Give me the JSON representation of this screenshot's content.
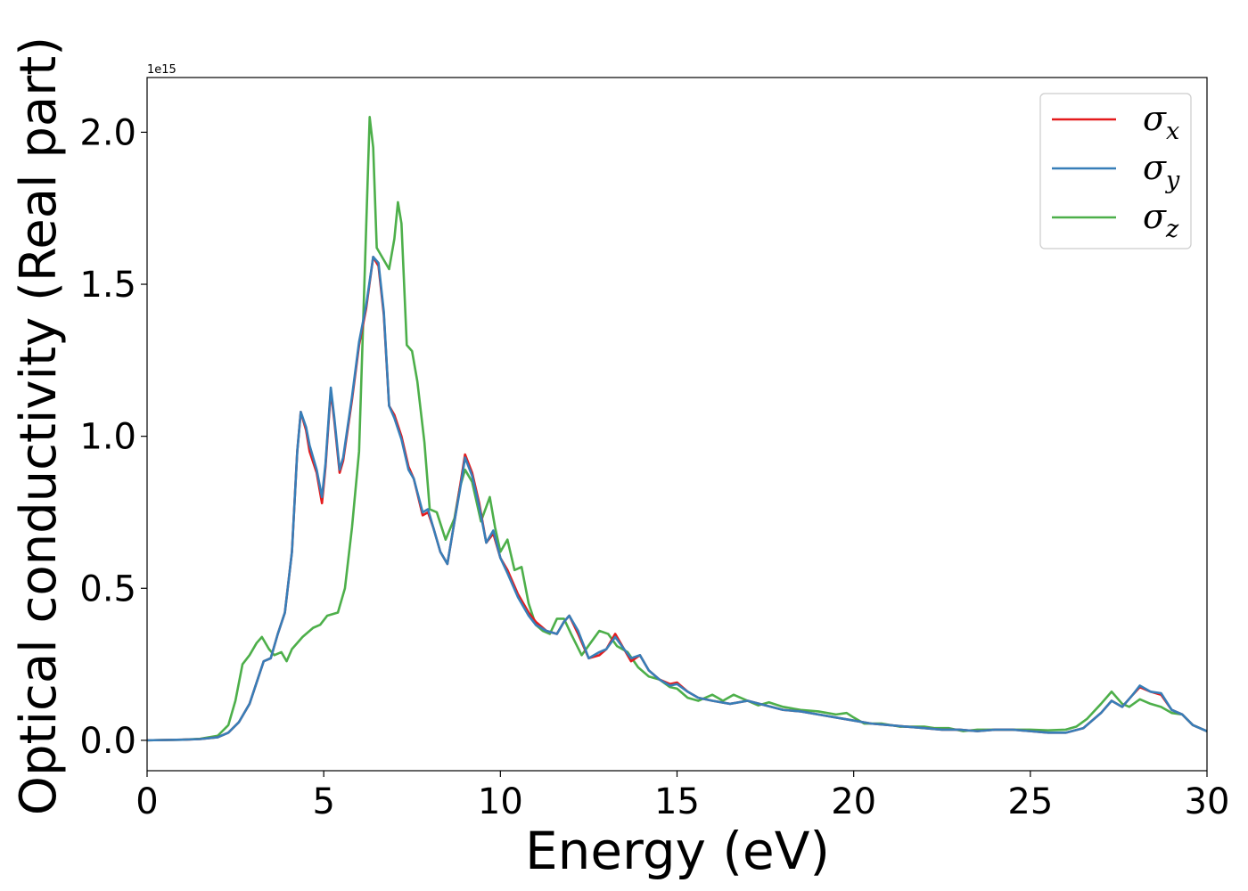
{
  "chart_data": {
    "type": "line",
    "title": "",
    "xlabel": "Energy (eV)",
    "ylabel": "Optical conductivity (Real part)",
    "y_offset_label": "1e15",
    "y_multiplier": 1000000000000000.0,
    "xlim": [
      0,
      30
    ],
    "ylim": [
      -0.1,
      2.18
    ],
    "x_ticks": [
      0,
      5,
      10,
      15,
      20,
      25,
      30
    ],
    "x_tick_labels": [
      "0",
      "5",
      "10",
      "15",
      "20",
      "25",
      "30"
    ],
    "y_ticks": [
      0.0,
      0.5,
      1.0,
      1.5,
      2.0
    ],
    "y_tick_labels": [
      "0.0",
      "0.5",
      "1.0",
      "1.5",
      "2.0"
    ],
    "grid": false,
    "legend_position": "top-right",
    "series": [
      {
        "name": "σx",
        "symbol": "σ",
        "subscript": "x",
        "color": "#e41a1c",
        "points": [
          [
            0,
            0
          ],
          [
            1,
            0.002
          ],
          [
            1.5,
            0.004
          ],
          [
            2,
            0.01
          ],
          [
            2.3,
            0.025
          ],
          [
            2.6,
            0.06
          ],
          [
            2.9,
            0.12
          ],
          [
            3.1,
            0.19
          ],
          [
            3.3,
            0.26
          ],
          [
            3.5,
            0.27
          ],
          [
            3.7,
            0.35
          ],
          [
            3.9,
            0.42
          ],
          [
            4.1,
            0.62
          ],
          [
            4.25,
            0.95
          ],
          [
            4.35,
            1.08
          ],
          [
            4.5,
            1.02
          ],
          [
            4.6,
            0.95
          ],
          [
            4.8,
            0.88
          ],
          [
            4.95,
            0.78
          ],
          [
            5.05,
            0.9
          ],
          [
            5.2,
            1.15
          ],
          [
            5.3,
            1.05
          ],
          [
            5.45,
            0.88
          ],
          [
            5.55,
            0.92
          ],
          [
            5.8,
            1.12
          ],
          [
            6.0,
            1.3
          ],
          [
            6.2,
            1.42
          ],
          [
            6.4,
            1.59
          ],
          [
            6.55,
            1.56
          ],
          [
            6.7,
            1.4
          ],
          [
            6.85,
            1.1
          ],
          [
            7.0,
            1.07
          ],
          [
            7.2,
            1.0
          ],
          [
            7.4,
            0.9
          ],
          [
            7.55,
            0.86
          ],
          [
            7.8,
            0.74
          ],
          [
            7.95,
            0.75
          ],
          [
            8.1,
            0.7
          ],
          [
            8.3,
            0.62
          ],
          [
            8.5,
            0.58
          ],
          [
            8.7,
            0.72
          ],
          [
            8.85,
            0.83
          ],
          [
            9.0,
            0.94
          ],
          [
            9.2,
            0.88
          ],
          [
            9.4,
            0.78
          ],
          [
            9.6,
            0.65
          ],
          [
            9.8,
            0.68
          ],
          [
            10.0,
            0.6
          ],
          [
            10.2,
            0.56
          ],
          [
            10.5,
            0.48
          ],
          [
            10.8,
            0.42
          ],
          [
            11.0,
            0.39
          ],
          [
            11.3,
            0.36
          ],
          [
            11.6,
            0.35
          ],
          [
            11.8,
            0.39
          ],
          [
            11.95,
            0.41
          ],
          [
            12.2,
            0.35
          ],
          [
            12.5,
            0.27
          ],
          [
            12.8,
            0.28
          ],
          [
            13.0,
            0.3
          ],
          [
            13.25,
            0.35
          ],
          [
            13.5,
            0.3
          ],
          [
            13.7,
            0.26
          ],
          [
            13.95,
            0.28
          ],
          [
            14.2,
            0.23
          ],
          [
            14.5,
            0.2
          ],
          [
            14.8,
            0.185
          ],
          [
            15.0,
            0.19
          ],
          [
            15.3,
            0.16
          ],
          [
            15.6,
            0.14
          ],
          [
            16.0,
            0.13
          ],
          [
            16.5,
            0.12
          ],
          [
            17.0,
            0.13
          ],
          [
            17.5,
            0.115
          ],
          [
            18.0,
            0.1
          ],
          [
            18.5,
            0.095
          ],
          [
            19.0,
            0.085
          ],
          [
            19.5,
            0.075
          ],
          [
            20.0,
            0.065
          ],
          [
            20.5,
            0.055
          ],
          [
            21.0,
            0.05
          ],
          [
            21.5,
            0.045
          ],
          [
            22.0,
            0.04
          ],
          [
            22.5,
            0.035
          ],
          [
            23.0,
            0.035
          ],
          [
            23.5,
            0.03
          ],
          [
            24.0,
            0.035
          ],
          [
            24.5,
            0.035
          ],
          [
            25.0,
            0.03
          ],
          [
            25.5,
            0.025
          ],
          [
            26.0,
            0.025
          ],
          [
            26.5,
            0.04
          ],
          [
            27.0,
            0.09
          ],
          [
            27.3,
            0.13
          ],
          [
            27.6,
            0.11
          ],
          [
            27.9,
            0.15
          ],
          [
            28.1,
            0.175
          ],
          [
            28.4,
            0.16
          ],
          [
            28.7,
            0.15
          ],
          [
            29.0,
            0.1
          ],
          [
            29.3,
            0.085
          ],
          [
            29.6,
            0.05
          ],
          [
            30.0,
            0.03
          ]
        ]
      },
      {
        "name": "σy",
        "symbol": "σ",
        "subscript": "y",
        "color": "#377eb8",
        "points": [
          [
            0,
            0
          ],
          [
            1,
            0.002
          ],
          [
            1.5,
            0.004
          ],
          [
            2,
            0.01
          ],
          [
            2.3,
            0.025
          ],
          [
            2.6,
            0.06
          ],
          [
            2.9,
            0.12
          ],
          [
            3.1,
            0.19
          ],
          [
            3.3,
            0.26
          ],
          [
            3.5,
            0.27
          ],
          [
            3.7,
            0.35
          ],
          [
            3.9,
            0.42
          ],
          [
            4.1,
            0.62
          ],
          [
            4.25,
            0.95
          ],
          [
            4.35,
            1.08
          ],
          [
            4.5,
            1.03
          ],
          [
            4.6,
            0.97
          ],
          [
            4.8,
            0.89
          ],
          [
            4.95,
            0.8
          ],
          [
            5.05,
            0.91
          ],
          [
            5.2,
            1.16
          ],
          [
            5.3,
            1.06
          ],
          [
            5.45,
            0.89
          ],
          [
            5.55,
            0.93
          ],
          [
            5.8,
            1.13
          ],
          [
            6.0,
            1.31
          ],
          [
            6.2,
            1.43
          ],
          [
            6.4,
            1.59
          ],
          [
            6.55,
            1.57
          ],
          [
            6.7,
            1.41
          ],
          [
            6.85,
            1.1
          ],
          [
            7.0,
            1.06
          ],
          [
            7.2,
            0.99
          ],
          [
            7.4,
            0.89
          ],
          [
            7.55,
            0.86
          ],
          [
            7.8,
            0.75
          ],
          [
            7.95,
            0.76
          ],
          [
            8.1,
            0.7
          ],
          [
            8.3,
            0.62
          ],
          [
            8.5,
            0.58
          ],
          [
            8.7,
            0.72
          ],
          [
            8.85,
            0.82
          ],
          [
            9.0,
            0.93
          ],
          [
            9.2,
            0.87
          ],
          [
            9.4,
            0.77
          ],
          [
            9.6,
            0.65
          ],
          [
            9.8,
            0.69
          ],
          [
            10.0,
            0.6
          ],
          [
            10.2,
            0.55
          ],
          [
            10.5,
            0.47
          ],
          [
            10.8,
            0.41
          ],
          [
            11.0,
            0.38
          ],
          [
            11.3,
            0.36
          ],
          [
            11.6,
            0.35
          ],
          [
            11.8,
            0.39
          ],
          [
            11.95,
            0.41
          ],
          [
            12.2,
            0.36
          ],
          [
            12.5,
            0.27
          ],
          [
            12.8,
            0.29
          ],
          [
            13.0,
            0.3
          ],
          [
            13.25,
            0.34
          ],
          [
            13.5,
            0.3
          ],
          [
            13.7,
            0.27
          ],
          [
            13.95,
            0.28
          ],
          [
            14.2,
            0.23
          ],
          [
            14.5,
            0.2
          ],
          [
            14.8,
            0.18
          ],
          [
            15.0,
            0.185
          ],
          [
            15.3,
            0.16
          ],
          [
            15.6,
            0.14
          ],
          [
            16.0,
            0.13
          ],
          [
            16.5,
            0.12
          ],
          [
            17.0,
            0.13
          ],
          [
            17.5,
            0.115
          ],
          [
            18.0,
            0.1
          ],
          [
            18.5,
            0.095
          ],
          [
            19.0,
            0.085
          ],
          [
            19.5,
            0.075
          ],
          [
            20.0,
            0.065
          ],
          [
            20.5,
            0.055
          ],
          [
            21.0,
            0.05
          ],
          [
            21.5,
            0.045
          ],
          [
            22.0,
            0.04
          ],
          [
            22.5,
            0.035
          ],
          [
            23.0,
            0.035
          ],
          [
            23.5,
            0.03
          ],
          [
            24.0,
            0.035
          ],
          [
            24.5,
            0.035
          ],
          [
            25.0,
            0.03
          ],
          [
            25.5,
            0.025
          ],
          [
            26.0,
            0.025
          ],
          [
            26.5,
            0.04
          ],
          [
            27.0,
            0.09
          ],
          [
            27.3,
            0.13
          ],
          [
            27.6,
            0.11
          ],
          [
            27.9,
            0.15
          ],
          [
            28.1,
            0.18
          ],
          [
            28.4,
            0.16
          ],
          [
            28.7,
            0.155
          ],
          [
            29.0,
            0.1
          ],
          [
            29.3,
            0.085
          ],
          [
            29.6,
            0.05
          ],
          [
            30.0,
            0.03
          ]
        ]
      },
      {
        "name": "σz",
        "symbol": "σ",
        "subscript": "z",
        "color": "#4daf4a",
        "points": [
          [
            0,
            0
          ],
          [
            1,
            0.002
          ],
          [
            1.5,
            0.005
          ],
          [
            2,
            0.015
          ],
          [
            2.3,
            0.05
          ],
          [
            2.5,
            0.13
          ],
          [
            2.7,
            0.25
          ],
          [
            2.9,
            0.28
          ],
          [
            3.1,
            0.32
          ],
          [
            3.25,
            0.34
          ],
          [
            3.45,
            0.3
          ],
          [
            3.6,
            0.28
          ],
          [
            3.8,
            0.29
          ],
          [
            3.95,
            0.26
          ],
          [
            4.1,
            0.3
          ],
          [
            4.4,
            0.34
          ],
          [
            4.7,
            0.37
          ],
          [
            4.9,
            0.38
          ],
          [
            5.1,
            0.41
          ],
          [
            5.4,
            0.42
          ],
          [
            5.6,
            0.5
          ],
          [
            5.8,
            0.7
          ],
          [
            6.0,
            0.95
          ],
          [
            6.15,
            1.5
          ],
          [
            6.3,
            2.05
          ],
          [
            6.4,
            1.95
          ],
          [
            6.5,
            1.62
          ],
          [
            6.7,
            1.58
          ],
          [
            6.85,
            1.55
          ],
          [
            7.0,
            1.65
          ],
          [
            7.1,
            1.77
          ],
          [
            7.2,
            1.7
          ],
          [
            7.35,
            1.3
          ],
          [
            7.5,
            1.28
          ],
          [
            7.65,
            1.18
          ],
          [
            7.85,
            0.98
          ],
          [
            8.0,
            0.76
          ],
          [
            8.2,
            0.75
          ],
          [
            8.45,
            0.66
          ],
          [
            8.7,
            0.73
          ],
          [
            8.85,
            0.83
          ],
          [
            9.0,
            0.89
          ],
          [
            9.2,
            0.85
          ],
          [
            9.45,
            0.72
          ],
          [
            9.7,
            0.8
          ],
          [
            9.85,
            0.7
          ],
          [
            10.0,
            0.62
          ],
          [
            10.2,
            0.66
          ],
          [
            10.4,
            0.56
          ],
          [
            10.6,
            0.57
          ],
          [
            10.8,
            0.45
          ],
          [
            11.0,
            0.38
          ],
          [
            11.2,
            0.36
          ],
          [
            11.4,
            0.35
          ],
          [
            11.6,
            0.4
          ],
          [
            11.8,
            0.4
          ],
          [
            12.0,
            0.35
          ],
          [
            12.3,
            0.28
          ],
          [
            12.55,
            0.32
          ],
          [
            12.8,
            0.36
          ],
          [
            13.05,
            0.35
          ],
          [
            13.3,
            0.31
          ],
          [
            13.6,
            0.29
          ],
          [
            13.9,
            0.24
          ],
          [
            14.2,
            0.21
          ],
          [
            14.5,
            0.2
          ],
          [
            14.8,
            0.175
          ],
          [
            15.0,
            0.17
          ],
          [
            15.3,
            0.14
          ],
          [
            15.6,
            0.13
          ],
          [
            16.0,
            0.15
          ],
          [
            16.3,
            0.13
          ],
          [
            16.6,
            0.15
          ],
          [
            17.0,
            0.13
          ],
          [
            17.3,
            0.115
          ],
          [
            17.6,
            0.125
          ],
          [
            18.0,
            0.11
          ],
          [
            18.5,
            0.1
          ],
          [
            19.0,
            0.095
          ],
          [
            19.5,
            0.085
          ],
          [
            19.8,
            0.09
          ],
          [
            20.0,
            0.075
          ],
          [
            20.3,
            0.055
          ],
          [
            20.8,
            0.055
          ],
          [
            21.3,
            0.045
          ],
          [
            22.0,
            0.045
          ],
          [
            22.3,
            0.04
          ],
          [
            22.7,
            0.04
          ],
          [
            23.1,
            0.03
          ],
          [
            23.5,
            0.035
          ],
          [
            24.0,
            0.035
          ],
          [
            24.5,
            0.035
          ],
          [
            25.0,
            0.035
          ],
          [
            25.5,
            0.033
          ],
          [
            26.0,
            0.035
          ],
          [
            26.3,
            0.045
          ],
          [
            26.6,
            0.07
          ],
          [
            27.0,
            0.12
          ],
          [
            27.3,
            0.16
          ],
          [
            27.6,
            0.12
          ],
          [
            27.8,
            0.11
          ],
          [
            28.1,
            0.135
          ],
          [
            28.4,
            0.12
          ],
          [
            28.7,
            0.11
          ],
          [
            29.0,
            0.09
          ],
          [
            29.3,
            0.085
          ],
          [
            29.6,
            0.05
          ],
          [
            30.0,
            0.03
          ]
        ]
      }
    ]
  }
}
